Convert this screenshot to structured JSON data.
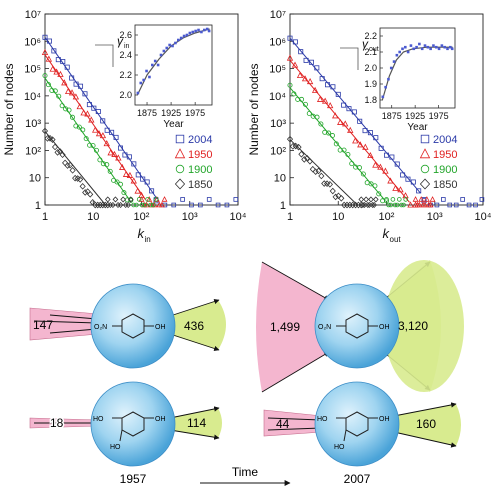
{
  "chart_data": [
    {
      "type": "scatter",
      "xscale": "log",
      "yscale": "log",
      "xlim": [
        1,
        10000
      ],
      "ylim": [
        1,
        10000000
      ],
      "xlabel": "k",
      "xlabel_sub": "in",
      "ylabel": "Number of nodes",
      "xticks": [
        "1",
        "10",
        "10²",
        "10³",
        "10⁴"
      ],
      "yticks": [
        "1",
        "10",
        "10²",
        "10³",
        "10⁴",
        "10⁵",
        "10⁶",
        "10⁷"
      ],
      "legend": [
        "2004",
        "1950",
        "1900",
        "1850"
      ],
      "legend_position": "lower-right",
      "series": [
        {
          "name": "2004",
          "color": "#2b3aa8",
          "marker": "square",
          "fit": {
            "a": 1400000,
            "x0": 1,
            "x1": 200
          },
          "cutoff": 200,
          "tail_end": 9000
        },
        {
          "name": "1950",
          "color": "#e02121",
          "marker": "triangle",
          "fit": {
            "a": 320000,
            "x0": 1,
            "x1": 120
          },
          "cutoff": 100,
          "tail_end": 300
        },
        {
          "name": "1900",
          "color": "#22a52a",
          "marker": "circle",
          "fit": {
            "a": 45000,
            "x0": 1,
            "x1": 60
          },
          "cutoff": 60,
          "tail_end": 200
        },
        {
          "name": "1850",
          "color": "#333333",
          "marker": "diamond",
          "fit": {
            "a": 500,
            "x0": 1,
            "x1": 18
          },
          "cutoff": 20,
          "tail_end": 60
        }
      ],
      "inset": {
        "symbol": "γ",
        "symbol_sub": "in",
        "xlabel": "Year",
        "xticks": [
          1875,
          1925,
          1975
        ],
        "xlim": [
          1850,
          2010
        ],
        "ylim": [
          1.9,
          2.7
        ],
        "yticks": [
          "2.0",
          "2.2",
          "2.4",
          "2.6"
        ],
        "points": [
          [
            1856,
            2.02
          ],
          [
            1862,
            2.12
          ],
          [
            1868,
            2.15
          ],
          [
            1874,
            2.24
          ],
          [
            1880,
            2.18
          ],
          [
            1886,
            2.3
          ],
          [
            1892,
            2.34
          ],
          [
            1898,
            2.3
          ],
          [
            1904,
            2.4
          ],
          [
            1910,
            2.44
          ],
          [
            1916,
            2.47
          ],
          [
            1922,
            2.5
          ],
          [
            1928,
            2.49
          ],
          [
            1934,
            2.52
          ],
          [
            1940,
            2.55
          ],
          [
            1946,
            2.57
          ],
          [
            1952,
            2.59
          ],
          [
            1958,
            2.6
          ],
          [
            1964,
            2.62
          ],
          [
            1970,
            2.63
          ],
          [
            1976,
            2.64
          ],
          [
            1982,
            2.65
          ],
          [
            1988,
            2.63
          ],
          [
            1994,
            2.65
          ],
          [
            2000,
            2.66
          ],
          [
            2004,
            2.64
          ]
        ],
        "curve": [
          [
            1855,
            2.0
          ],
          [
            1875,
            2.2
          ],
          [
            1900,
            2.36
          ],
          [
            1925,
            2.49
          ],
          [
            1950,
            2.57
          ],
          [
            1975,
            2.62
          ],
          [
            2005,
            2.66
          ]
        ]
      }
    },
    {
      "type": "scatter",
      "xscale": "log",
      "yscale": "log",
      "xlim": [
        1,
        10000
      ],
      "ylim": [
        1,
        10000000
      ],
      "xlabel": "k",
      "xlabel_sub": "out",
      "ylabel": "Number of nodes",
      "xticks": [
        "1",
        "10",
        "10²",
        "10³",
        "10⁴"
      ],
      "yticks": [
        "1",
        "10",
        "10²",
        "10³",
        "10⁴",
        "10⁵",
        "10⁶",
        "10⁷"
      ],
      "legend": [
        "2004",
        "1950",
        "1900",
        "1850"
      ],
      "legend_position": "lower-right",
      "series": [
        {
          "name": "2004",
          "color": "#2b3aa8",
          "marker": "square",
          "fit": {
            "a": 1300000,
            "x0": 1,
            "x1": 500
          },
          "cutoff": 600,
          "tail_end": 9500
        },
        {
          "name": "1950",
          "color": "#e02121",
          "marker": "triangle",
          "fit": {
            "a": 200000,
            "x0": 1,
            "x1": 300
          },
          "cutoff": 400,
          "tail_end": 900
        },
        {
          "name": "1900",
          "color": "#22a52a",
          "marker": "circle",
          "fit": {
            "a": 20000,
            "x0": 1,
            "x1": 90
          },
          "cutoff": 100,
          "tail_end": 250
        },
        {
          "name": "1850",
          "color": "#333333",
          "marker": "diamond",
          "fit": {
            "a": 250,
            "x0": 1,
            "x1": 25
          },
          "cutoff": 30,
          "tail_end": 60
        }
      ],
      "inset": {
        "symbol": "γ",
        "symbol_sub": "out",
        "xlabel": "Year",
        "xticks": [
          1875,
          1925,
          1975
        ],
        "xlim": [
          1850,
          2010
        ],
        "ylim": [
          1.75,
          2.25
        ],
        "yticks": [
          "1.8",
          "1.9",
          "2.0",
          "2.1",
          "2.2"
        ],
        "points": [
          [
            1856,
            1.82
          ],
          [
            1862,
            1.88
          ],
          [
            1868,
            1.93
          ],
          [
            1874,
            2.0
          ],
          [
            1880,
            2.04
          ],
          [
            1886,
            2.08
          ],
          [
            1892,
            2.1
          ],
          [
            1898,
            2.12
          ],
          [
            1904,
            2.13
          ],
          [
            1910,
            2.1
          ],
          [
            1916,
            2.14
          ],
          [
            1922,
            2.12
          ],
          [
            1928,
            2.13
          ],
          [
            1934,
            2.15
          ],
          [
            1940,
            2.12
          ],
          [
            1946,
            2.14
          ],
          [
            1952,
            2.13
          ],
          [
            1958,
            2.12
          ],
          [
            1964,
            2.14
          ],
          [
            1970,
            2.13
          ],
          [
            1976,
            2.12
          ],
          [
            1982,
            2.14
          ],
          [
            1988,
            2.13
          ],
          [
            1994,
            2.12
          ],
          [
            2000,
            2.13
          ],
          [
            2004,
            2.12
          ]
        ],
        "curve": [
          [
            1855,
            1.8
          ],
          [
            1870,
            1.95
          ],
          [
            1885,
            2.05
          ],
          [
            1900,
            2.1
          ],
          [
            1920,
            2.12
          ],
          [
            1950,
            2.13
          ],
          [
            2005,
            2.13
          ]
        ]
      }
    }
  ],
  "diagram": {
    "time_label": "Time",
    "years": [
      "1957",
      "2007"
    ],
    "nodes": [
      {
        "id": "1957-top",
        "in_count": "147",
        "out_count": "436",
        "molecule": "4-nitrophenol",
        "groups": [
          "O₂N",
          "OH"
        ]
      },
      {
        "id": "1957-bottom",
        "in_count": "18",
        "out_count": "114",
        "molecule": "hydroxyquinol",
        "groups": [
          "HO",
          "OH",
          "HO"
        ]
      },
      {
        "id": "2007-top",
        "in_count": "1,499",
        "out_count": "3,120",
        "molecule": "4-nitrophenol",
        "groups": [
          "O₂N",
          "OH"
        ]
      },
      {
        "id": "2007-bottom",
        "in_count": "44",
        "out_count": "160",
        "molecule": "hydroxyquinol",
        "groups": [
          "HO",
          "OH",
          "HO"
        ]
      }
    ],
    "colors": {
      "in": "#f4b6cf",
      "out": "#d8eb8f",
      "sphere": "#7ec4ea"
    }
  }
}
